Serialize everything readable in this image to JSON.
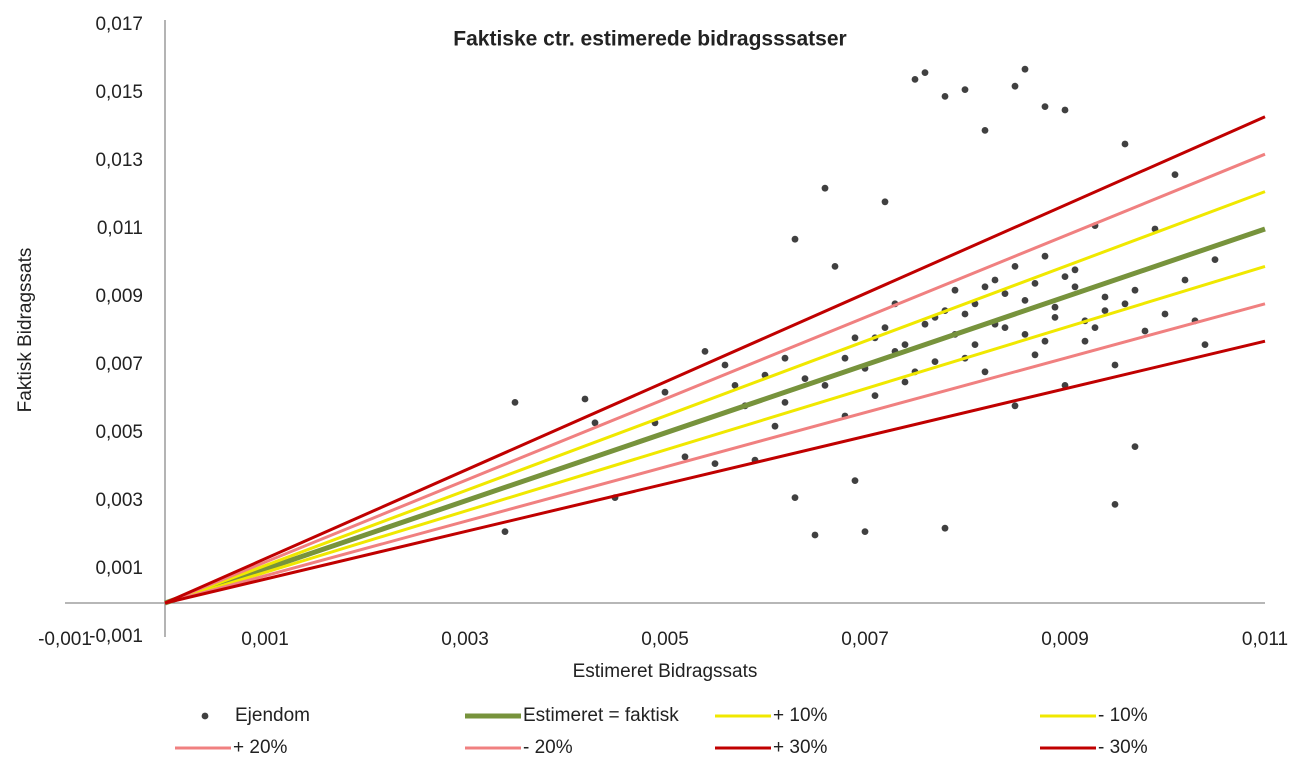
{
  "chart_data": {
    "type": "scatter",
    "title": "Faktiske ctr. estimerede bidragsssatser",
    "x_label": "Estimeret Bidragssats",
    "y_label": "Faktisk Bidragssats",
    "xlim": [
      -0.001,
      0.011
    ],
    "ylim": [
      -0.001,
      0.017
    ],
    "xticks": [
      {
        "value": -0.001,
        "label": "-0,001"
      },
      {
        "value": 0.001,
        "label": "0,001"
      },
      {
        "value": 0.003,
        "label": "0,003"
      },
      {
        "value": 0.005,
        "label": "0,005"
      },
      {
        "value": 0.007,
        "label": "0,007"
      },
      {
        "value": 0.009,
        "label": "0,009"
      },
      {
        "value": 0.011,
        "label": "0,011"
      }
    ],
    "yticks": [
      {
        "value": -0.001,
        "label": "-0,001"
      },
      {
        "value": 0.001,
        "label": "0,001"
      },
      {
        "value": 0.003,
        "label": "0,003"
      },
      {
        "value": 0.005,
        "label": "0,005"
      },
      {
        "value": 0.007,
        "label": "0,007"
      },
      {
        "value": 0.009,
        "label": "0,009"
      },
      {
        "value": 0.011,
        "label": "0,011"
      },
      {
        "value": 0.013,
        "label": "0,013"
      },
      {
        "value": 0.015,
        "label": "0,015"
      },
      {
        "value": 0.017,
        "label": "0,017"
      }
    ],
    "grid": false,
    "legend": "bottom",
    "series": [
      {
        "name": "Ejendom",
        "color": "#404040",
        "mode": "markers",
        "x": [
          0.0035,
          0.0034,
          0.0042,
          0.0045,
          0.0043,
          0.0049,
          0.005,
          0.0052,
          0.0054,
          0.0055,
          0.0056,
          0.0058,
          0.0059,
          0.006,
          0.0062,
          0.0063,
          0.0063,
          0.0065,
          0.0066,
          0.0067,
          0.0068,
          0.0069,
          0.007,
          0.0071,
          0.0072,
          0.0073,
          0.0074,
          0.0075,
          0.0076,
          0.0076,
          0.0077,
          0.0078,
          0.0078,
          0.0079,
          0.008,
          0.008,
          0.0081,
          0.0082,
          0.0082,
          0.0083,
          0.0084,
          0.0085,
          0.0085,
          0.0086,
          0.0086,
          0.0087,
          0.0088,
          0.0088,
          0.0089,
          0.009,
          0.009,
          0.0091,
          0.0092,
          0.0093,
          0.0094,
          0.0095,
          0.0095,
          0.0096,
          0.0097,
          0.0097,
          0.0098,
          0.0099,
          0.01,
          0.0101,
          0.0102,
          0.0104,
          0.0105,
          0.0103,
          0.0068,
          0.007,
          0.0072,
          0.0074,
          0.0075,
          0.0077,
          0.0079,
          0.0081,
          0.0083,
          0.0084,
          0.0086,
          0.0087,
          0.0089,
          0.0091,
          0.0092,
          0.0094,
          0.0096,
          0.0066,
          0.0069,
          0.0071,
          0.0073,
          0.0078,
          0.008,
          0.0082,
          0.0085,
          0.0088,
          0.009,
          0.0093,
          0.0062,
          0.0064,
          0.0061,
          0.0057
        ],
        "values": [
          0.0059,
          0.0021,
          0.006,
          0.0031,
          0.0053,
          0.0053,
          0.0062,
          0.0043,
          0.0074,
          0.0041,
          0.007,
          0.0058,
          0.0042,
          0.0067,
          0.0072,
          0.0107,
          0.0031,
          0.002,
          0.0122,
          0.0099,
          0.0055,
          0.0036,
          0.0021,
          0.0078,
          0.0118,
          0.0088,
          0.0065,
          0.0154,
          0.0156,
          0.0082,
          0.0071,
          0.0149,
          0.0022,
          0.0092,
          0.0151,
          0.0085,
          0.0076,
          0.0139,
          0.0068,
          0.0095,
          0.0081,
          0.0152,
          0.0058,
          0.0157,
          0.0089,
          0.0073,
          0.0146,
          0.0102,
          0.0084,
          0.0064,
          0.0145,
          0.0093,
          0.0077,
          0.0111,
          0.0086,
          0.007,
          0.0029,
          0.0135,
          0.0092,
          0.0046,
          0.008,
          0.011,
          0.0085,
          0.0126,
          0.0095,
          0.0076,
          0.0101,
          0.0083,
          0.0072,
          0.0069,
          0.0081,
          0.0076,
          0.0068,
          0.0084,
          0.0079,
          0.0088,
          0.0082,
          0.0091,
          0.0079,
          0.0094,
          0.0087,
          0.0098,
          0.0083,
          0.009,
          0.0088,
          0.0064,
          0.0078,
          0.0061,
          0.0074,
          0.0086,
          0.0072,
          0.0093,
          0.0099,
          0.0077,
          0.0096,
          0.0081,
          0.0059,
          0.0066,
          0.0052,
          0.0064
        ]
      },
      {
        "name": "Estimeret = faktisk",
        "color": "#77933c",
        "mode": "line",
        "width": 5,
        "x": [
          0,
          0.011
        ],
        "values": [
          0,
          0.011
        ]
      },
      {
        "name": "+ 10%",
        "color": "#f0e800",
        "mode": "line",
        "width": 3,
        "x": [
          0,
          0.011
        ],
        "values": [
          0,
          0.0121
        ]
      },
      {
        "name": "- 10%",
        "color": "#f0e800",
        "mode": "line",
        "width": 3,
        "x": [
          0,
          0.011
        ],
        "values": [
          0,
          0.0099
        ]
      },
      {
        "name": "+ 20%",
        "color": "#f08080",
        "mode": "line",
        "width": 3,
        "x": [
          0,
          0.011
        ],
        "values": [
          0,
          0.0132
        ]
      },
      {
        "name": "- 20%",
        "color": "#f08080",
        "mode": "line",
        "width": 3,
        "x": [
          0,
          0.011
        ],
        "values": [
          0,
          0.0088
        ]
      },
      {
        "name": "+ 30%",
        "color": "#c00000",
        "mode": "line",
        "width": 3,
        "x": [
          0,
          0.011
        ],
        "values": [
          0,
          0.0143
        ]
      },
      {
        "name": "- 30%",
        "color": "#c00000",
        "mode": "line",
        "width": 3,
        "x": [
          0,
          0.011
        ],
        "values": [
          0,
          0.0077
        ]
      }
    ]
  }
}
